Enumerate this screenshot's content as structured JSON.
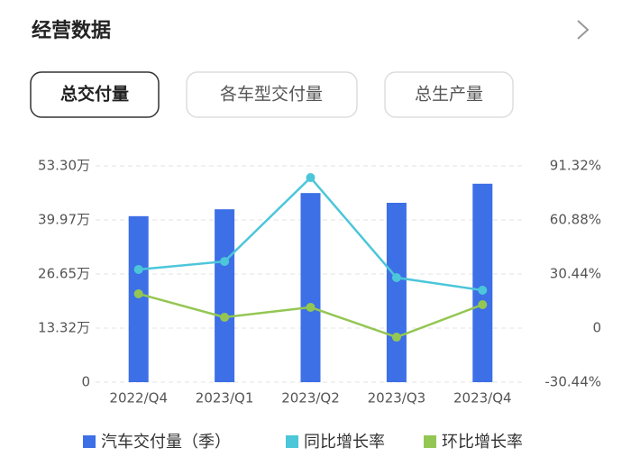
{
  "header": {
    "title": "经营数据"
  },
  "tabs": [
    "总交付量",
    "各车型交付量",
    "总生产量"
  ],
  "chart_data": {
    "type": "bar",
    "categories": [
      "2022/Q4",
      "2023/Q1",
      "2023/Q2",
      "2023/Q3",
      "2023/Q4"
    ],
    "series": [
      {
        "name": "汽车交付量（季）",
        "color": "#3d6fe6",
        "values": [
          40.9,
          42.6,
          46.6,
          44.2,
          48.9
        ]
      },
      {
        "name": "同比增长率",
        "color": "#4cc6d9",
        "type": "line",
        "axis": "y2",
        "values": [
          33.0,
          37.5,
          84.7,
          28.4,
          21.3
        ]
      },
      {
        "name": "环比增长率",
        "color": "#94c653",
        "type": "line",
        "axis": "y2",
        "values": [
          19.3,
          6.1,
          11.7,
          -5.1,
          13.2
        ]
      }
    ],
    "ylim": [
      0,
      53.3
    ],
    "yticks": [
      0,
      {
        "value": 13.32,
        "label": "13.32万"
      },
      {
        "value": 26.65,
        "label": "26.65万"
      },
      {
        "value": 39.97,
        "label": "39.97万"
      },
      {
        "value": 53.3,
        "label": "53.30万"
      }
    ],
    "y2lim": [
      -30.44,
      91.32
    ],
    "y2ticks": [
      {
        "value": -30.44,
        "label": "-30.44%"
      },
      0,
      {
        "value": 30.44,
        "label": "30.44%"
      },
      {
        "value": 60.88,
        "label": "60.88%"
      },
      {
        "value": 91.32,
        "label": "91.32%"
      }
    ],
    "grid": true
  }
}
